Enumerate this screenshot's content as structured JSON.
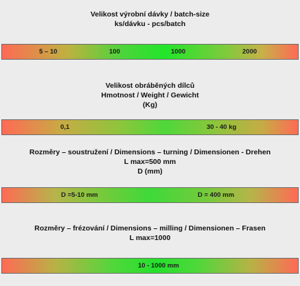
{
  "section_batch": {
    "title_line1": "Velikost výrobní dávky / batch-size",
    "title_line2": "ks/dávku   -  pcs/batch",
    "labels": [
      "5 – 10",
      "100",
      "1000",
      "2000"
    ]
  },
  "section_weight": {
    "title_line1": "Velikost obráběných dílců",
    "title_line2": "Hmotnost / Weight  / Gewicht",
    "title_line3": "(Kg)",
    "labels": [
      "0,1",
      "30 - 40 kg"
    ]
  },
  "section_turning": {
    "title_line1": "Rozměry – soustružení  / Dimensions – turning  /  Dimensionen - Drehen",
    "title_line2": "L max=500 mm",
    "title_line3": "D (mm)",
    "labels": [
      "D =5-10 mm",
      "D = 400 mm"
    ]
  },
  "section_milling": {
    "title_line1": "Rozměry – frézování  / Dimensions – milling /  Dimensionen – Frasen",
    "title_line2": "L max=1000",
    "labels": [
      "10 - 1000 mm"
    ]
  },
  "colors": {
    "range_edge": "#ff6a55",
    "range_center": "#22e52a",
    "background": "#ececec"
  }
}
